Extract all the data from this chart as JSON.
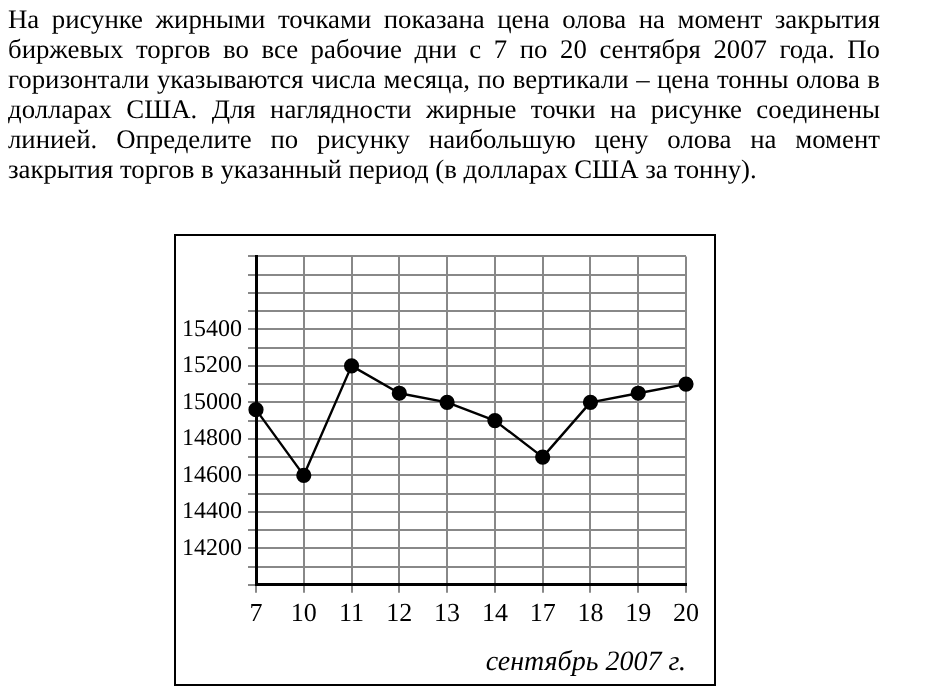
{
  "chart_data": {
    "type": "line",
    "annotations": [
      "На рисунке жирными точками показана цена олова на момент закрытия биржевых торгов во все рабочие дни с 7 по 20 сентября 2007 года. По горизонтали указываются числа месяца, по вертикали – цена тонны олова в долларах США. Для наглядности жирные точки на рисунке соединены линией. Определите по рисунку наибольшую цену олова на момент закрытия торгов в указанный период (в долларах США за тонну)."
    ],
    "xlabel": "сентябрь 2007 г.",
    "categories": [
      "7",
      "10",
      "11",
      "12",
      "13",
      "14",
      "17",
      "18",
      "19",
      "20"
    ],
    "series": [
      {
        "color": "#000000",
        "values": [
          14960,
          14600,
          15200,
          15050,
          15000,
          14900,
          14700,
          15000,
          15050,
          15100
        ]
      }
    ],
    "ylim": [
      14000,
      15800
    ],
    "yticks": [
      {
        "value": 14000,
        "label": null
      },
      {
        "value": 14100,
        "label": null
      },
      14200,
      {
        "value": 14300,
        "label": null
      },
      14400,
      {
        "value": 14500,
        "label": null
      },
      14600,
      {
        "value": 14700,
        "label": null
      },
      14800,
      {
        "value": 14900,
        "label": null
      },
      15000,
      {
        "value": 15100,
        "label": null
      },
      15200,
      {
        "value": 15300,
        "label": null
      },
      15400,
      {
        "value": 15500,
        "label": null
      },
      {
        "value": 15600,
        "label": null
      },
      {
        "value": 15700,
        "label": null
      },
      {
        "value": 15800,
        "label": null
      }
    ],
    "grid": true,
    "legend": false,
    "marker": "circle",
    "line_style": "solid"
  }
}
